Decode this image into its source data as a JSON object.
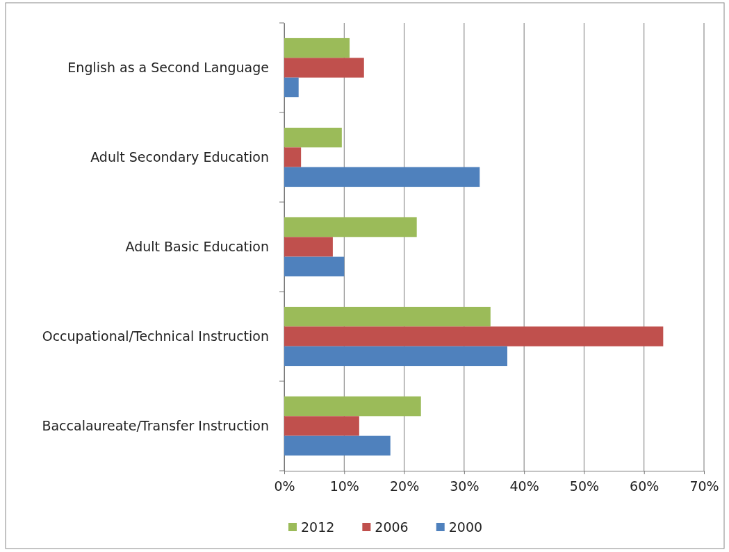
{
  "chart_data": {
    "type": "bar",
    "orientation": "horizontal",
    "categories": [
      "English as a Second Language",
      "Adult Secondary Education",
      "Adult Basic Education",
      "Occupational/Technical Instruction",
      "Baccalaureate/Transfer Instruction"
    ],
    "series": [
      {
        "name": "2012",
        "color": "#9bbb59",
        "values": [
          10.9,
          9.6,
          22.1,
          34.4,
          22.8
        ]
      },
      {
        "name": "2006",
        "color": "#c0504d",
        "values": [
          13.3,
          2.8,
          8.1,
          63.2,
          12.5
        ]
      },
      {
        "name": "2000",
        "color": "#4f81bd",
        "values": [
          2.4,
          32.6,
          10.0,
          37.2,
          17.7
        ]
      }
    ],
    "xlim": [
      0,
      70
    ],
    "xticks": [
      {
        "value": 0,
        "label": "0%"
      },
      {
        "value": 10,
        "label": "10%"
      },
      {
        "value": 20,
        "label": "20%"
      },
      {
        "value": 30,
        "label": "30%"
      },
      {
        "value": 40,
        "label": "40%"
      },
      {
        "value": 50,
        "label": "50%"
      },
      {
        "value": 60,
        "label": "60%"
      },
      {
        "value": 70,
        "label": "70%"
      }
    ],
    "grid": "x",
    "legend": "bottom"
  }
}
